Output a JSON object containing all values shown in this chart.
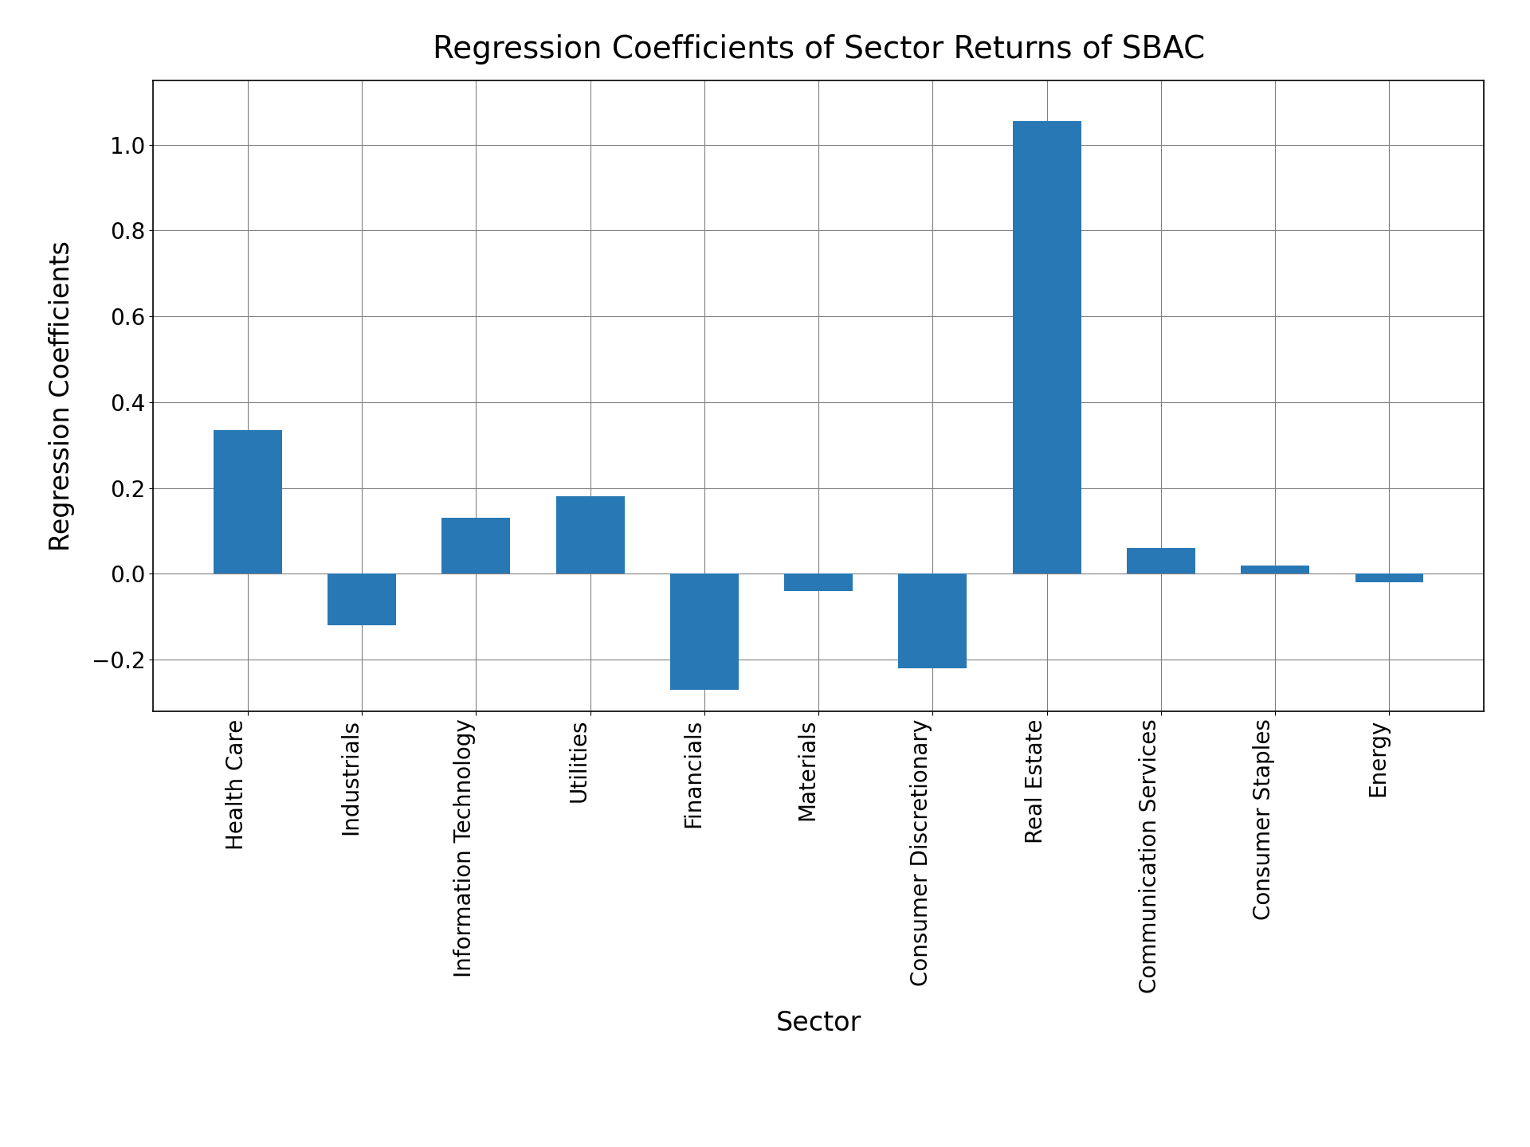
{
  "categories": [
    "Health Care",
    "Industrials",
    "Information Technology",
    "Utilities",
    "Financials",
    "Materials",
    "Consumer Discretionary",
    "Real Estate",
    "Communication Services",
    "Consumer Staples",
    "Energy"
  ],
  "values": [
    0.335,
    -0.12,
    0.13,
    0.18,
    -0.27,
    -0.04,
    -0.22,
    1.055,
    0.06,
    0.02,
    -0.02
  ],
  "bar_color": "#2878b5",
  "title": "Regression Coefficients of Sector Returns of SBAC",
  "xlabel": "Sector",
  "ylabel": "Regression Coefficients",
  "title_fontsize": 28,
  "label_fontsize": 24,
  "tick_fontsize": 20,
  "ylim": [
    -0.32,
    1.15
  ],
  "grid": true,
  "background_color": "#ffffff",
  "figure_width": 19.2,
  "figure_height": 14.4,
  "bar_width": 0.6,
  "xtick_rotation": 90
}
